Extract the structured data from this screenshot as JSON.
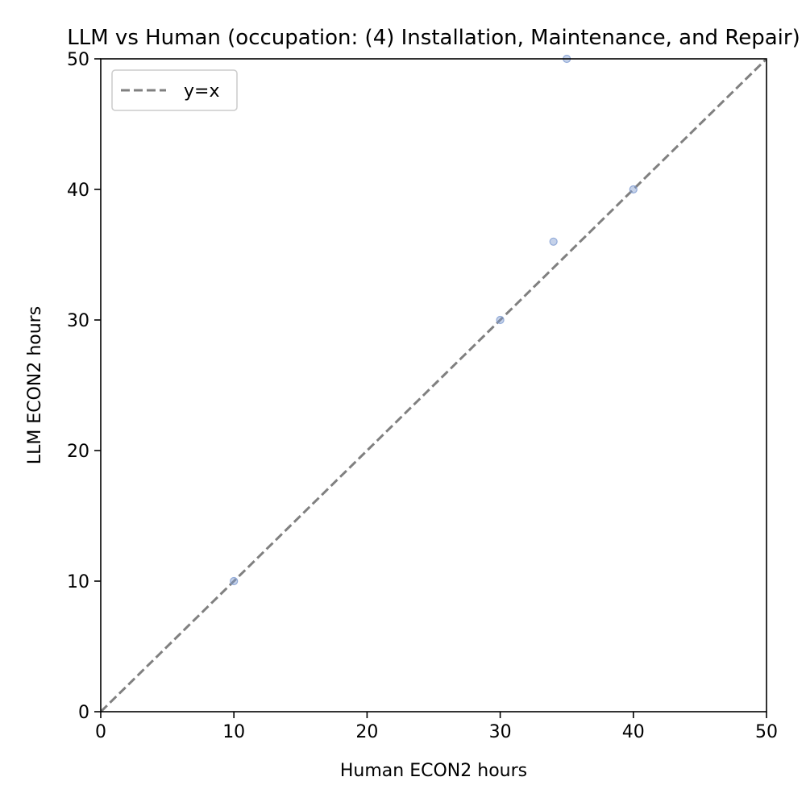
{
  "chart_data": {
    "type": "scatter",
    "title": "LLM vs Human (occupation: (4) Installation, Maintenance, and Repair)",
    "xlabel": "Human ECON2 hours",
    "ylabel": "LLM ECON2 hours",
    "xlim": [
      0,
      50
    ],
    "ylim": [
      0,
      50
    ],
    "x_ticks": [
      "0",
      "10",
      "20",
      "30",
      "40",
      "50"
    ],
    "y_ticks": [
      "0",
      "10",
      "20",
      "30",
      "40",
      "50"
    ],
    "grid": false,
    "legend": {
      "placement": "top-left",
      "entries": [
        "y=x"
      ]
    },
    "reference_line": {
      "name": "y=x",
      "style": "dashed",
      "color": "#808080"
    },
    "points_color": "#7e9bd1",
    "points": [
      {
        "x": 10,
        "y": 10
      },
      {
        "x": 30,
        "y": 30
      },
      {
        "x": 34,
        "y": 36
      },
      {
        "x": 35,
        "y": 50
      },
      {
        "x": 40,
        "y": 40
      }
    ]
  }
}
